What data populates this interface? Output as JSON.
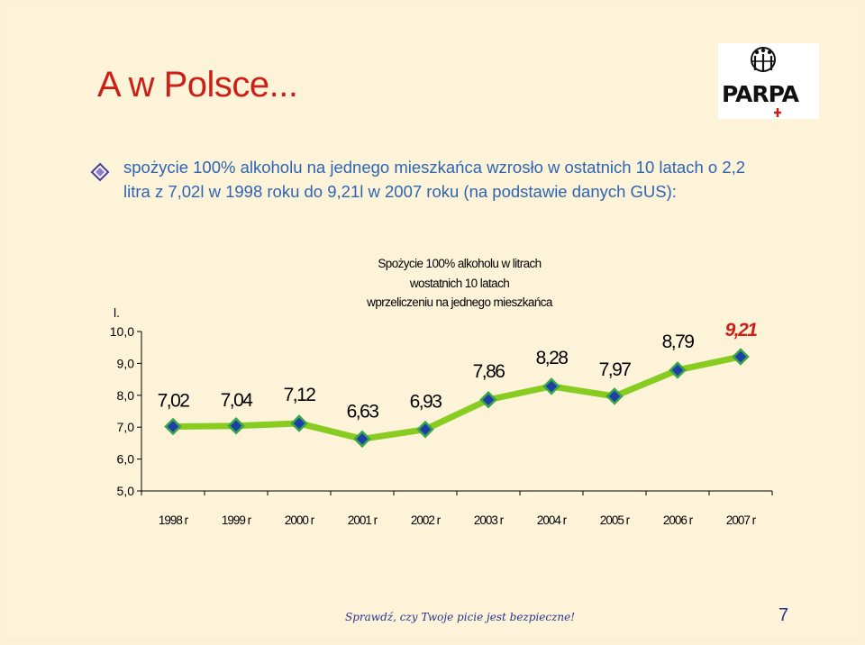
{
  "slide": {
    "title": "A w Polsce...",
    "bullet": "spożycie 100% alkoholu na jednego mieszkańca wzrosło w ostatnich 10 latach o 2,2 litra z 7,02l w 1998 roku do 9,21l w 2007 roku (na podstawie danych GUS):",
    "logo_text": "PARPA",
    "footer_motto": "Sprawdź, czy Twoje picie jest bezpieczne!",
    "page_number": "7"
  },
  "colors": {
    "title": "#cc1f16",
    "bullet_text": "#2e65b3",
    "line": "#88cc22",
    "marker_fill": "#1f3fa8",
    "marker_stroke": "#3aa54a",
    "highlight_label": "#cc1f16",
    "footer": "#27348b"
  },
  "chart_data": {
    "type": "line",
    "title_lines": [
      "Spożycie 100% alkoholu w litrach",
      "wostatnich 10 latach",
      "wprzeliczeniu na jednego mieszkańca"
    ],
    "ylabel": "l.",
    "xlabel": "",
    "categories": [
      "1998 r",
      "1999 r",
      "2000 r",
      "2001 r",
      "2002 r",
      "2003 r",
      "2004 r",
      "2005 r",
      "2006 r",
      "2007 r"
    ],
    "values": [
      7.02,
      7.04,
      7.12,
      6.63,
      6.93,
      7.86,
      8.28,
      7.97,
      8.79,
      9.21
    ],
    "data_labels": [
      "7,02",
      "7,04",
      "7,12",
      "6,63",
      "6,93",
      "7,86",
      "8,28",
      "7,97",
      "8,79",
      "9,21"
    ],
    "highlight_index": 9,
    "ylim": [
      5,
      10
    ],
    "yticks": [
      5,
      6,
      7,
      8,
      9,
      10
    ],
    "ytick_labels": [
      "5,0",
      "6,0",
      "7,0",
      "8,0",
      "9,0",
      "10,0"
    ],
    "grid": false,
    "legend": "none"
  }
}
